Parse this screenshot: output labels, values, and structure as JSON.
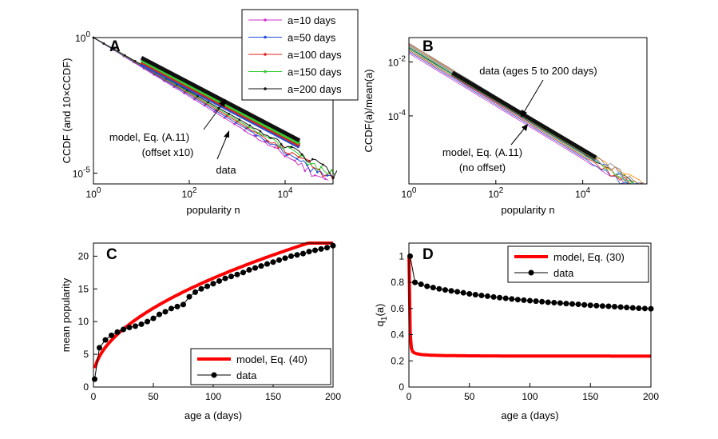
{
  "chart_data": [
    {
      "id": "A",
      "type": "line",
      "panel_label": "A",
      "xscale": "log",
      "yscale": "log",
      "xlim": [
        1,
        100000
      ],
      "ylim": [
        4e-06,
        1
      ],
      "xlabel": "popularity n",
      "ylabel": "CCDF (and 10×CCDF)",
      "x_ticks": [
        {
          "value": 1,
          "base": "10",
          "exp": "0"
        },
        {
          "value": 100,
          "base": "10",
          "exp": "2"
        },
        {
          "value": 10000,
          "base": "10",
          "exp": "4"
        }
      ],
      "y_ticks": [
        {
          "value": 1e-05,
          "base": "10",
          "exp": "-5"
        },
        {
          "value": 1,
          "base": "10",
          "exp": "0"
        }
      ],
      "series": [
        {
          "name": "a=10 days",
          "color": "#cc33cc",
          "n_max": 80000,
          "y_end": 4.8e-06
        },
        {
          "name": "a=50 days",
          "color": "#1f4fd6",
          "n_max": 90000,
          "y_end": 5.8e-06
        },
        {
          "name": "a=100 days",
          "color": "#e0201b",
          "n_max": 100000,
          "y_end": 6.8e-06
        },
        {
          "name": "a=150 days",
          "color": "#33cc33",
          "n_max": 110000,
          "y_end": 7.8e-06
        },
        {
          "name": "a=200 days",
          "color": "#111111",
          "n_max": 120000,
          "y_end": 9e-06
        }
      ],
      "model_lines": [
        {
          "color": "#1f4fd6",
          "x": [
            10,
            20000
          ],
          "y": [
            0.11,
            9.5e-05
          ]
        },
        {
          "color": "#e0201b",
          "x": [
            10,
            20000
          ],
          "y": [
            0.13,
            0.00011
          ]
        },
        {
          "color": "#33cc33",
          "x": [
            10,
            20000
          ],
          "y": [
            0.15,
            0.00013
          ]
        },
        {
          "color": "#111111",
          "x": [
            10,
            20000
          ],
          "y": [
            0.18,
            0.00016
          ]
        }
      ],
      "legend_position": "top-right",
      "annotations": [
        {
          "id": "model",
          "lines": [
            "model, Eq. (A.11)",
            "(offset x10)"
          ]
        },
        {
          "id": "data",
          "lines": [
            "data"
          ]
        }
      ]
    },
    {
      "id": "B",
      "type": "line",
      "panel_label": "B",
      "xscale": "log",
      "yscale": "log",
      "xlim": [
        1,
        300000
      ],
      "ylim": [
        3e-07,
        0.08
      ],
      "xlabel": "popularity n",
      "ylabel": "CCDF(a)/mean(a)",
      "x_ticks": [
        {
          "value": 1,
          "base": "10",
          "exp": "0"
        },
        {
          "value": 100,
          "base": "10",
          "exp": "2"
        },
        {
          "value": 10000,
          "base": "10",
          "exp": "4"
        }
      ],
      "y_ticks": [
        {
          "value": 0.0001,
          "base": "10",
          "exp": "-4"
        },
        {
          "value": 0.01,
          "base": "10",
          "exp": "-2"
        }
      ],
      "annotations": [
        {
          "id": "data",
          "lines": [
            "data (ages 5 to 200 days)"
          ]
        },
        {
          "id": "model",
          "lines": [
            "model, Eq. (A.11)",
            "(no offset)"
          ]
        }
      ]
    },
    {
      "id": "C",
      "type": "line",
      "panel_label": "C",
      "xlim": [
        0,
        200
      ],
      "ylim": [
        0,
        22
      ],
      "xlabel": "age a (days)",
      "ylabel": "mean popularity",
      "x_ticks": [
        0,
        50,
        100,
        150,
        200
      ],
      "y_ticks": [
        0,
        5,
        10,
        15,
        20
      ],
      "legend_position": "bottom-right",
      "series": [
        {
          "name": "model, Eq. (40)",
          "color": "#ff0000",
          "kind": "model"
        },
        {
          "name": "data",
          "color": "#000000",
          "kind": "markers",
          "x": [
            1,
            5,
            10,
            15,
            20,
            25,
            30,
            35,
            40,
            45,
            50,
            55,
            60,
            65,
            70,
            75,
            80,
            85,
            90,
            95,
            100,
            105,
            110,
            115,
            120,
            125,
            130,
            135,
            140,
            145,
            150,
            155,
            160,
            165,
            170,
            175,
            180,
            185,
            190,
            195,
            200
          ],
          "y": [
            1.2,
            6.0,
            7.2,
            7.9,
            8.4,
            8.8,
            9.1,
            9.3,
            9.6,
            10.0,
            10.5,
            11.1,
            11.5,
            12.0,
            12.3,
            12.6,
            13.8,
            14.5,
            15.0,
            15.4,
            15.8,
            16.2,
            16.6,
            16.9,
            17.2,
            17.5,
            17.9,
            18.2,
            18.5,
            18.8,
            19.1,
            19.4,
            19.7,
            20.0,
            20.2,
            20.4,
            20.7,
            20.9,
            21.1,
            21.3,
            21.6
          ]
        }
      ]
    },
    {
      "id": "D",
      "type": "line",
      "panel_label": "D",
      "xlim": [
        0,
        200
      ],
      "ylim": [
        0,
        1.1
      ],
      "xlabel": "age a (days)",
      "ylabel_base": "q",
      "ylabel_sub": "1",
      "ylabel_rest": "(a)",
      "x_ticks": [
        0,
        50,
        100,
        150,
        200
      ],
      "y_ticks": [
        0,
        0.2,
        0.4,
        0.6,
        0.8,
        1
      ],
      "legend_position": "top-right",
      "series": [
        {
          "name": "model, Eq. (30)",
          "color": "#ff0000",
          "kind": "model"
        },
        {
          "name": "data",
          "color": "#000000",
          "kind": "markers",
          "x": [
            1,
            5,
            10,
            15,
            20,
            25,
            30,
            35,
            40,
            45,
            50,
            55,
            60,
            65,
            70,
            75,
            80,
            85,
            90,
            95,
            100,
            105,
            110,
            115,
            120,
            125,
            130,
            135,
            140,
            145,
            150,
            155,
            160,
            165,
            170,
            175,
            180,
            185,
            190,
            195,
            200
          ],
          "y": [
            1.0,
            0.8,
            0.785,
            0.77,
            0.76,
            0.75,
            0.742,
            0.735,
            0.728,
            0.72,
            0.712,
            0.706,
            0.7,
            0.694,
            0.688,
            0.683,
            0.678,
            0.673,
            0.668,
            0.664,
            0.66,
            0.656,
            0.652,
            0.648,
            0.645,
            0.642,
            0.638,
            0.635,
            0.632,
            0.628,
            0.625,
            0.622,
            0.619,
            0.617,
            0.614,
            0.611,
            0.608,
            0.605,
            0.602,
            0.6,
            0.598
          ]
        }
      ]
    }
  ]
}
